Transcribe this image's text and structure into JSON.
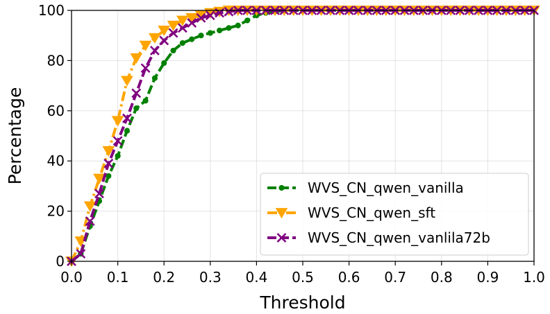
{
  "chart_data": {
    "type": "line",
    "title": "",
    "xlabel": "Threshold",
    "ylabel": "Percentage",
    "xlim": [
      0.0,
      1.0
    ],
    "ylim": [
      0,
      100
    ],
    "grid": true,
    "legend_position": "lower-right",
    "x_ticks": [
      "0.0",
      "0.1",
      "0.2",
      "0.3",
      "0.4",
      "0.5",
      "0.6",
      "0.7",
      "0.8",
      "0.9",
      "1.0"
    ],
    "y_ticks": [
      "0",
      "20",
      "40",
      "60",
      "80",
      "100"
    ],
    "x": [
      0.0,
      0.02,
      0.04,
      0.06,
      0.08,
      0.1,
      0.12,
      0.14,
      0.16,
      0.18,
      0.2,
      0.22,
      0.24,
      0.26,
      0.28,
      0.3,
      0.32,
      0.34,
      0.36,
      0.38,
      0.4,
      0.42,
      0.44,
      0.46,
      0.48,
      0.5,
      0.52,
      0.54,
      0.56,
      0.58,
      0.6,
      0.62,
      0.64,
      0.66,
      0.68,
      0.7,
      0.72,
      0.74,
      0.76,
      0.78,
      0.8,
      0.82,
      0.84,
      0.86,
      0.88,
      0.9,
      0.92,
      0.94,
      0.96,
      0.98,
      1.0
    ],
    "series": [
      {
        "name": "WVS_CN_qwen_vanilla",
        "color": "#008000",
        "style": "dashed",
        "marker": "circle",
        "values": [
          0,
          3,
          14,
          24,
          34,
          42,
          52,
          61,
          64,
          73,
          79,
          84,
          87,
          88.5,
          90,
          91,
          92,
          93,
          94,
          96,
          98,
          99,
          99.5,
          100,
          100,
          100,
          100,
          100,
          100,
          100,
          100,
          100,
          100,
          100,
          100,
          100,
          100,
          100,
          100,
          100,
          100,
          100,
          100,
          100,
          100,
          100,
          100,
          100,
          100,
          100,
          100
        ]
      },
      {
        "name": "WVS_CN_qwen_sft",
        "color": "#FFA500",
        "style": "dashdot",
        "marker": "triangle-down",
        "values": [
          0,
          8,
          22,
          33,
          44,
          56,
          72,
          81,
          86,
          89,
          92,
          94,
          96,
          97,
          98,
          99,
          99.5,
          100,
          100,
          100,
          100,
          100,
          100,
          100,
          100,
          100,
          100,
          100,
          100,
          100,
          100,
          100,
          100,
          100,
          100,
          100,
          100,
          100,
          100,
          100,
          100,
          100,
          100,
          100,
          100,
          100,
          100,
          100,
          100,
          100,
          100
        ]
      },
      {
        "name": "WVS_CN_qwen_vanlila72b",
        "color": "#800080",
        "style": "dashed",
        "marker": "x",
        "values": [
          0,
          3,
          16,
          27,
          39,
          48,
          57,
          67,
          77,
          84,
          88,
          91,
          93,
          95,
          97,
          98,
          99,
          99.5,
          100,
          100,
          100,
          100,
          100,
          100,
          100,
          100,
          100,
          100,
          100,
          100,
          100,
          100,
          100,
          100,
          100,
          100,
          100,
          100,
          100,
          100,
          100,
          100,
          100,
          100,
          100,
          100,
          100,
          100,
          100,
          100,
          100
        ]
      }
    ]
  }
}
